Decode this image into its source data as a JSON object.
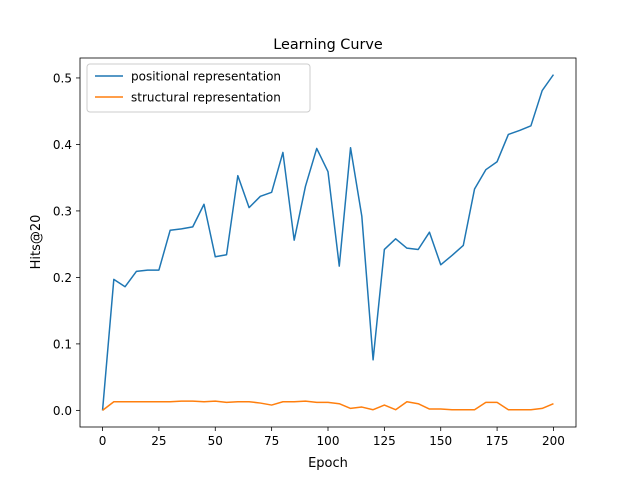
{
  "chart_data": {
    "type": "line",
    "title": "Learning Curve",
    "xlabel": "Epoch",
    "ylabel": "Hits@20",
    "xlim": [
      -10,
      210
    ],
    "ylim": [
      -0.025,
      0.53
    ],
    "xticks": [
      0,
      25,
      50,
      75,
      100,
      125,
      150,
      175,
      200
    ],
    "yticks": [
      0.0,
      0.1,
      0.2,
      0.3,
      0.4,
      0.5
    ],
    "ytick_labels": [
      "0.0",
      "0.1",
      "0.2",
      "0.3",
      "0.4",
      "0.5"
    ],
    "grid": false,
    "legend_position": "top-left",
    "x": [
      0,
      5,
      10,
      15,
      20,
      25,
      30,
      35,
      40,
      45,
      50,
      55,
      60,
      65,
      70,
      75,
      80,
      85,
      90,
      95,
      100,
      105,
      110,
      115,
      120,
      125,
      130,
      135,
      140,
      145,
      150,
      155,
      160,
      165,
      170,
      175,
      180,
      185,
      190,
      195,
      200
    ],
    "series": [
      {
        "name": "positional representation",
        "color": "#1f77b4",
        "values": [
          0.0,
          0.197,
          0.186,
          0.209,
          0.211,
          0.211,
          0.271,
          0.273,
          0.276,
          0.31,
          0.231,
          0.234,
          0.353,
          0.305,
          0.322,
          0.328,
          0.388,
          0.256,
          0.337,
          0.394,
          0.359,
          0.217,
          0.395,
          0.292,
          0.076,
          0.242,
          0.258,
          0.244,
          0.242,
          0.268,
          0.219,
          0.233,
          0.248,
          0.333,
          0.362,
          0.374,
          0.415,
          0.421,
          0.428,
          0.481,
          0.505
        ]
      },
      {
        "name": "structural representation",
        "color": "#ff7f0e",
        "values": [
          0.0,
          0.013,
          0.013,
          0.013,
          0.013,
          0.013,
          0.013,
          0.014,
          0.014,
          0.013,
          0.014,
          0.012,
          0.013,
          0.013,
          0.011,
          0.008,
          0.013,
          0.013,
          0.014,
          0.012,
          0.012,
          0.01,
          0.003,
          0.005,
          0.001,
          0.008,
          0.001,
          0.013,
          0.01,
          0.002,
          0.002,
          0.001,
          0.001,
          0.001,
          0.012,
          0.012,
          0.001,
          0.001,
          0.001,
          0.003,
          0.01
        ]
      }
    ]
  }
}
